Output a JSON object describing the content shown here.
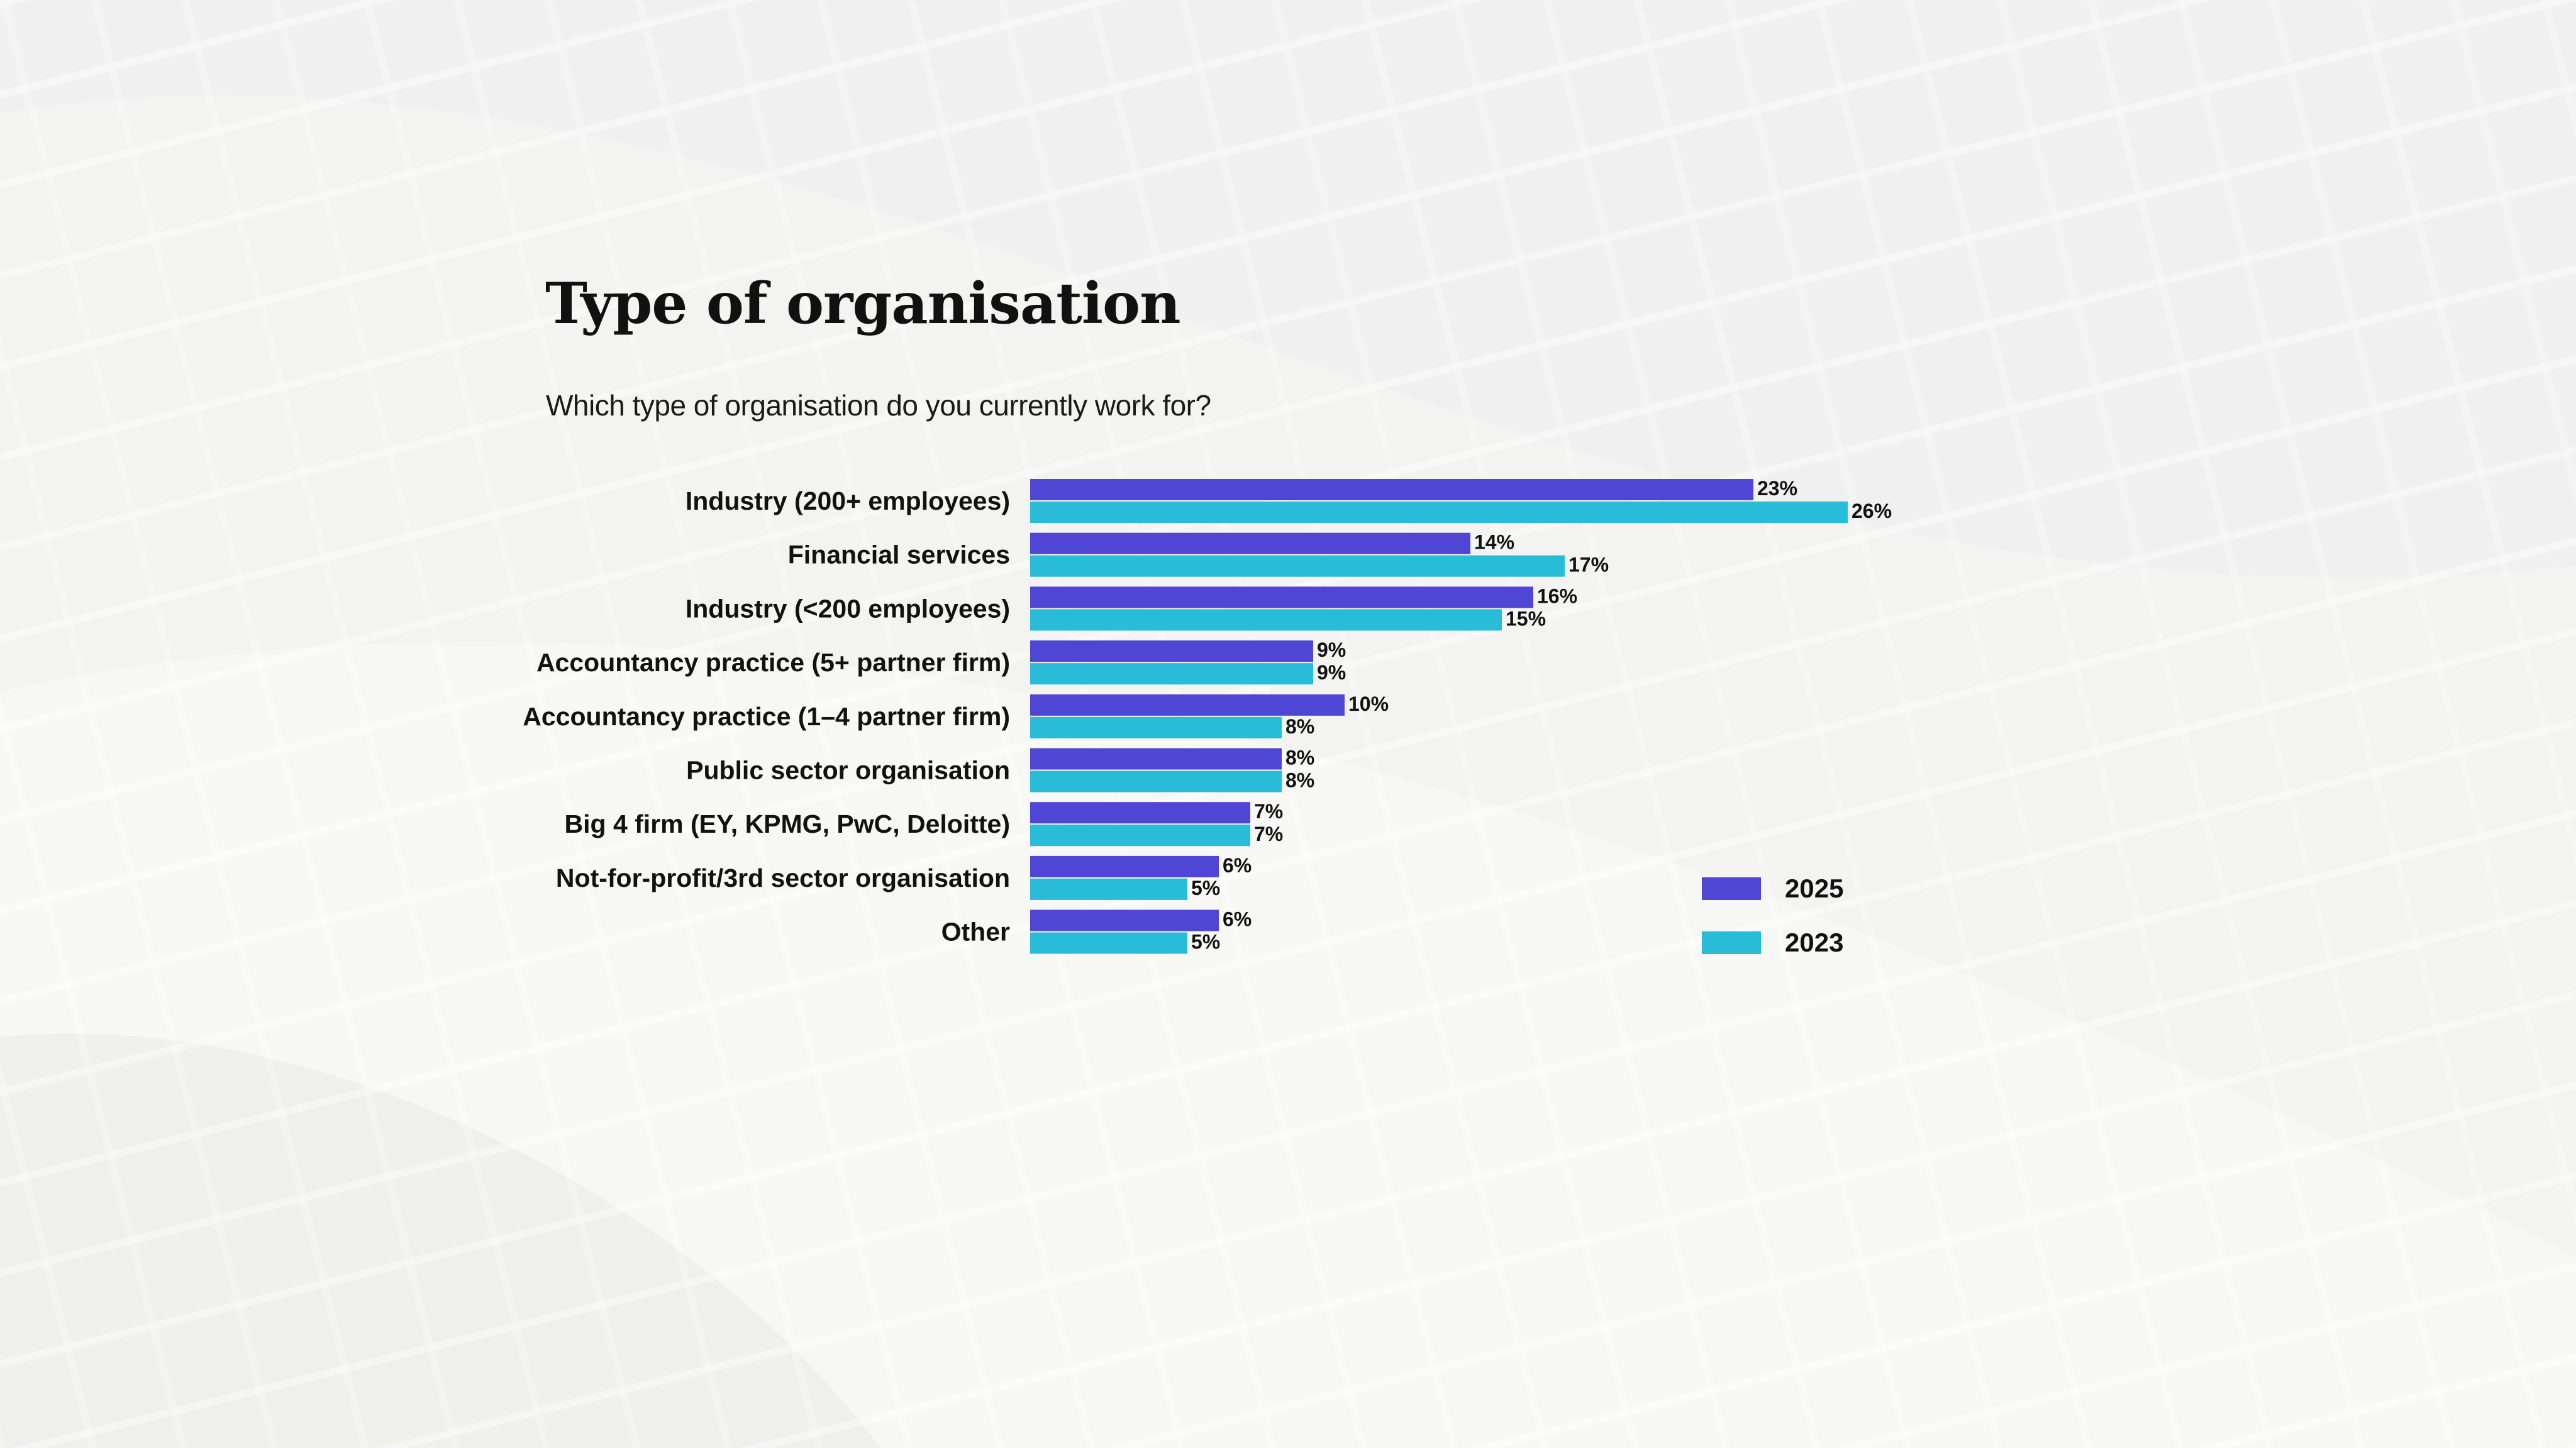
{
  "title": "Type of organisation",
  "subtitle": "Which type of organisation do you currently work for?",
  "colors": {
    "series_2025": "#4f46d6",
    "series_2023": "#29bcd8",
    "background": "#f3f3f2"
  },
  "chart_data": {
    "type": "bar",
    "orientation": "horizontal",
    "categories": [
      "Industry (200+ employees)",
      "Financial services",
      "Industry (<200 employees)",
      "Accountancy practice (5+ partner firm)",
      "Accountancy practice (1–4 partner firm)",
      "Public sector organisation",
      "Big 4 firm (EY, KPMG, PwC, Deloitte)",
      "Not-for-profit/3rd sector organisation",
      "Other"
    ],
    "series": [
      {
        "name": "2025",
        "values": [
          23,
          14,
          16,
          9,
          10,
          8,
          7,
          6,
          6
        ],
        "labels": [
          "23%",
          "14%",
          "16%",
          "9%",
          "10%",
          "8%",
          "7%",
          "6%",
          "6%"
        ]
      },
      {
        "name": "2023",
        "values": [
          26,
          17,
          15,
          9,
          8,
          8,
          7,
          5,
          5
        ],
        "labels": [
          "26%",
          "17%",
          "15%",
          "9%",
          "8%",
          "8%",
          "7%",
          "5%",
          "5%"
        ]
      }
    ],
    "unit": "%",
    "xlim": [
      0,
      26
    ],
    "grid": false,
    "legend_position": "bottom-right"
  }
}
